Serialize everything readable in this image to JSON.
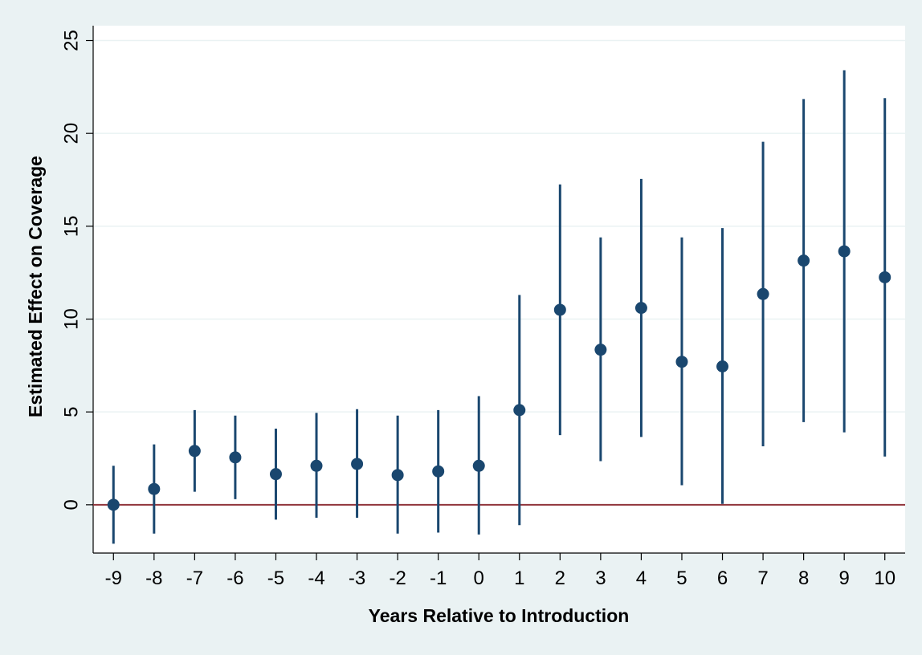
{
  "chart_data": {
    "type": "scatter",
    "title": "",
    "xlabel": "Years Relative to Introduction",
    "ylabel": "Estimated Effect on Coverage",
    "x": [
      -9,
      -8,
      -7,
      -6,
      -5,
      -4,
      -3,
      -2,
      -1,
      0,
      1,
      2,
      3,
      4,
      5,
      6,
      7,
      8,
      9,
      10
    ],
    "y": [
      0,
      0.85,
      2.9,
      2.55,
      1.65,
      2.1,
      2.2,
      1.6,
      1.8,
      2.1,
      5.1,
      10.5,
      8.35,
      10.6,
      7.7,
      7.45,
      11.35,
      13.15,
      13.65,
      12.25
    ],
    "ci_low": [
      -2.1,
      -1.55,
      0.7,
      0.3,
      -0.8,
      -0.7,
      -0.7,
      -1.55,
      -1.5,
      -1.6,
      -1.1,
      3.75,
      2.35,
      3.65,
      1.05,
      0.05,
      3.15,
      4.45,
      3.9,
      2.6
    ],
    "ci_high": [
      2.1,
      3.25,
      5.1,
      4.8,
      4.1,
      4.95,
      5.15,
      4.8,
      5.1,
      5.85,
      11.3,
      17.25,
      14.4,
      17.55,
      14.4,
      14.9,
      19.55,
      21.85,
      23.4,
      21.9
    ],
    "xlim": [
      -9.5,
      10.5
    ],
    "ylim": [
      -2.6,
      25.8
    ],
    "yticks": [
      0,
      5,
      10,
      15,
      20,
      25
    ],
    "grid": true,
    "reference_line": 0,
    "colors": {
      "background": "#eaf2f3",
      "plot": "#ffffff",
      "grid": "#eaf2f3",
      "marker": "#1a476f",
      "reference": "#90353b"
    }
  }
}
